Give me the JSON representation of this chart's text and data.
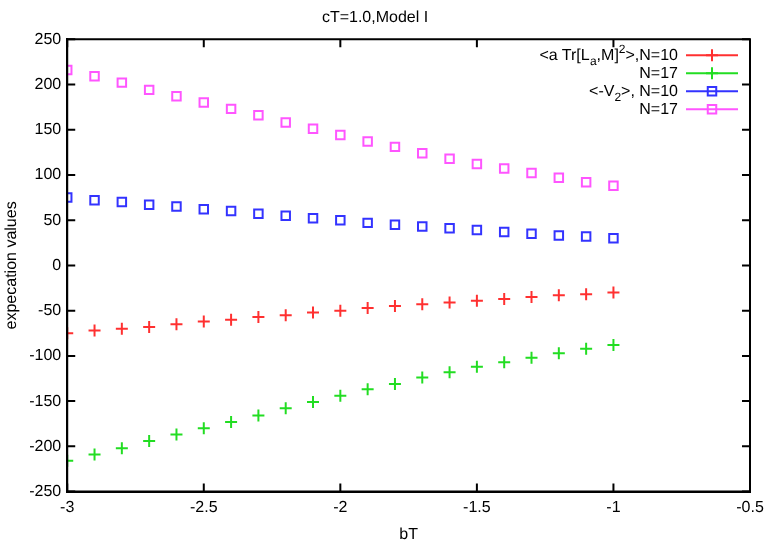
{
  "chart_data": {
    "type": "scatter",
    "title": "cT=1.0,Model I",
    "xlabel": "bT",
    "ylabel": "expecation values",
    "x": [
      -3,
      -2.9,
      -2.8,
      -2.7,
      -2.6,
      -2.5,
      -2.4,
      -2.3,
      -2.2,
      -2.1,
      -2,
      -1.9,
      -1.8,
      -1.7,
      -1.6,
      -1.5,
      -1.4,
      -1.3,
      -1.2,
      -1.1,
      -1
    ],
    "series": [
      {
        "name": "<a Tr[L$_{a}$,M]$^{2}$>,N=10",
        "color": "#ff3030",
        "marker": "cross",
        "values": [
          -75,
          -72,
          -70,
          -68,
          -65,
          -62,
          -60,
          -57,
          -55,
          -52,
          -50,
          -47,
          -45,
          -43,
          -41,
          -39,
          -37,
          -35,
          -33,
          -32,
          -30
        ]
      },
      {
        "name": "N=17",
        "color": "#22dd22",
        "marker": "cross",
        "values": [
          -216,
          -209,
          -202,
          -194,
          -187,
          -180,
          -173,
          -166,
          -158,
          -151,
          -144,
          -137,
          -131,
          -124,
          -118,
          -112,
          -107,
          -102,
          -97,
          -92,
          -88
        ]
      },
      {
        "name": "<-V$_{2}$>, N=10",
        "color": "#3333ff",
        "marker": "square",
        "values": [
          75,
          72,
          70,
          67,
          65,
          62,
          60,
          57,
          55,
          52,
          50,
          47,
          45,
          43,
          41,
          39,
          37,
          35,
          33,
          32,
          30
        ]
      },
      {
        "name": "N=17",
        "color": "#ff55ff",
        "marker": "square",
        "values": [
          216,
          209,
          202,
          194,
          187,
          180,
          173,
          166,
          158,
          151,
          144,
          137,
          131,
          124,
          118,
          112,
          107,
          102,
          97,
          92,
          88
        ]
      }
    ],
    "xlim": [
      -3,
      -0.5
    ],
    "xticks": [
      -3,
      -2.5,
      -2,
      -1.5,
      -1,
      -0.5
    ],
    "ylim": [
      -250,
      250
    ],
    "yticks": [
      -250,
      -200,
      -150,
      -100,
      -50,
      0,
      50,
      100,
      150,
      200,
      250
    ],
    "grid": false,
    "legend": "top right"
  }
}
